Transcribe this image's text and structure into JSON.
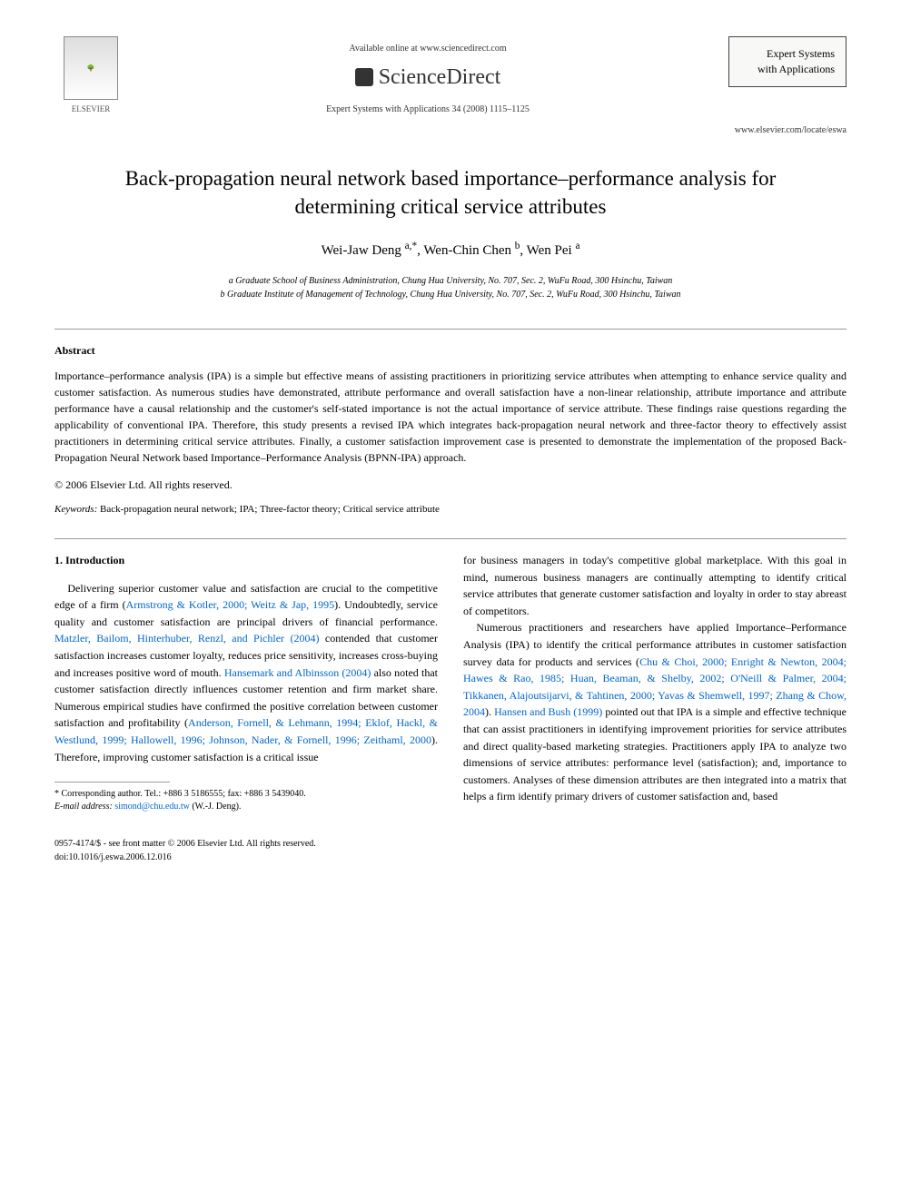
{
  "header": {
    "publisher": "ELSEVIER",
    "available_online": "Available online at www.sciencedirect.com",
    "sciencedirect": "ScienceDirect",
    "journal_ref": "Expert Systems with Applications 34 (2008) 1115–1125",
    "journal_box_line1": "Expert Systems",
    "journal_box_line2": "with Applications",
    "journal_url": "www.elsevier.com/locate/eswa"
  },
  "paper": {
    "title": "Back-propagation neural network based importance–performance analysis for determining critical service attributes",
    "authors_html": "Wei-Jaw Deng <sup>a,*</sup>, Wen-Chin Chen <sup>b</sup>, Wen Pei <sup>a</sup>",
    "affil_a": "a Graduate School of Business Administration, Chung Hua University, No. 707, Sec. 2, WuFu Road, 300 Hsinchu, Taiwan",
    "affil_b": "b Graduate Institute of Management of Technology, Chung Hua University, No. 707, Sec. 2, WuFu Road, 300 Hsinchu, Taiwan"
  },
  "abstract": {
    "heading": "Abstract",
    "body": "Importance–performance analysis (IPA) is a simple but effective means of assisting practitioners in prioritizing service attributes when attempting to enhance service quality and customer satisfaction. As numerous studies have demonstrated, attribute performance and overall satisfaction have a non-linear relationship, attribute importance and attribute performance have a causal relationship and the customer's self-stated importance is not the actual importance of service attribute. These findings raise questions regarding the applicability of conventional IPA. Therefore, this study presents a revised IPA which integrates back-propagation neural network and three-factor theory to effectively assist practitioners in determining critical service attributes. Finally, a customer satisfaction improvement case is presented to demonstrate the implementation of the proposed Back-Propagation Neural Network based Importance–Performance Analysis (BPNN-IPA) approach.",
    "copyright": "© 2006 Elsevier Ltd. All rights reserved."
  },
  "keywords": {
    "label": "Keywords:",
    "list": "Back-propagation neural network; IPA; Three-factor theory; Critical service attribute"
  },
  "intro": {
    "heading": "1. Introduction",
    "col1_p1_a": "Delivering superior customer value and satisfaction are crucial to the competitive edge of a firm (",
    "col1_ref1": "Armstrong & Kotler, 2000; Weitz & Jap, 1995",
    "col1_p1_b": "). Undoubtedly, service quality and customer satisfaction are principal drivers of financial performance. ",
    "col1_ref2": "Matzler, Bailom, Hinterhuber, Renzl, and Pichler (2004)",
    "col1_p1_c": " contended that customer satisfaction increases customer loyalty, reduces price sensitivity, increases cross-buying and increases positive word of mouth. ",
    "col1_ref3": "Hansemark and Albinsson (2004)",
    "col1_p1_d": " also noted that customer satisfaction directly influences customer retention and firm market share. Numerous empirical studies have confirmed the positive correlation between customer satisfaction and profitability (",
    "col1_ref4": "Anderson, Fornell, & Lehmann, 1994; Eklof, Hackl, & Westlund, 1999; Hallowell, 1996; Johnson, Nader, & Fornell, 1996; Zeithaml, 2000",
    "col1_p1_e": "). Therefore, improving customer satisfaction is a critical issue",
    "col2_p1": "for business managers in today's competitive global marketplace. With this goal in mind, numerous business managers are continually attempting to identify critical service attributes that generate customer satisfaction and loyalty in order to stay abreast of competitors.",
    "col2_p2_a": "Numerous practitioners and researchers have applied Importance–Performance Analysis (IPA) to identify the critical performance attributes in customer satisfaction survey data for products and services (",
    "col2_ref1": "Chu & Choi, 2000; Enright & Newton, 2004; Hawes & Rao, 1985; Huan, Beaman, & Shelby, 2002; O'Neill & Palmer, 2004; Tikkanen, Alajoutsijarvi, & Tahtinen, 2000; Yavas & Shemwell, 1997; Zhang & Chow, 2004",
    "col2_p2_b": "). ",
    "col2_ref2": "Hansen and Bush (1999)",
    "col2_p2_c": " pointed out that IPA is a simple and effective technique that can assist practitioners in identifying improvement priorities for service attributes and direct quality-based marketing strategies. Practitioners apply IPA to analyze two dimensions of service attributes: performance level (satisfaction); and, importance to customers. Analyses of these dimension attributes are then integrated into a matrix that helps a firm identify primary drivers of customer satisfaction and, based"
  },
  "footnote": {
    "corr": "* Corresponding author. Tel.: +886 3 5186555; fax: +886 3 5439040.",
    "email_label": "E-mail address:",
    "email": "simond@chu.edu.tw",
    "email_suffix": "(W.-J. Deng)."
  },
  "footer": {
    "left_line1": "0957-4174/$ - see front matter © 2006 Elsevier Ltd. All rights reserved.",
    "left_line2": "doi:10.1016/j.eswa.2006.12.016"
  },
  "colors": {
    "text": "#000000",
    "link": "#0066cc",
    "rule": "#999999",
    "background": "#ffffff"
  },
  "typography": {
    "body_fontsize_pt": 12,
    "title_fontsize_pt": 23,
    "authors_fontsize_pt": 15,
    "affil_fontsize_pt": 10,
    "footnote_fontsize_pt": 10,
    "font_family": "Georgia, Times New Roman, serif"
  }
}
